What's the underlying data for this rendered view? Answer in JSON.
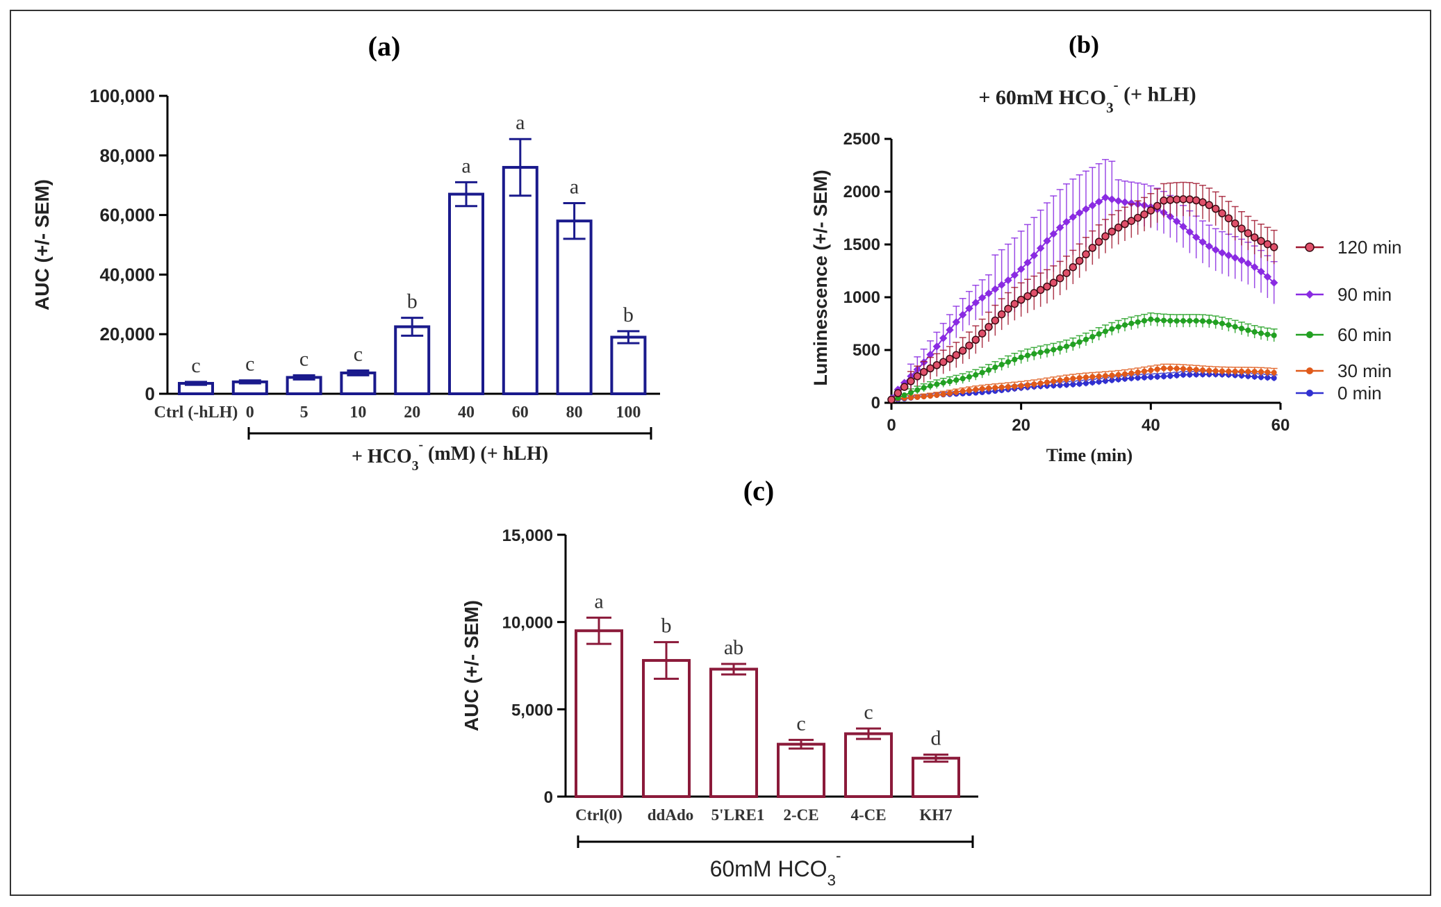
{
  "panels": {
    "a": {
      "label": "(a)"
    },
    "b": {
      "label": "(b)"
    },
    "c": {
      "label": "(c)"
    }
  },
  "chart_data": [
    {
      "id": "a",
      "type": "bar",
      "color": "#1a1a8c",
      "ylabel": "AUC (+/- SEM)",
      "ylim": [
        0,
        100000
      ],
      "yticks": [
        0,
        20000,
        40000,
        60000,
        80000,
        100000
      ],
      "ytick_labels": [
        "0",
        "20,000",
        "40,000",
        "60,000",
        "80,000",
        "100,000"
      ],
      "categories": [
        "Ctrl (-hLH)",
        "0",
        "5",
        "10",
        "20",
        "40",
        "60",
        "80",
        "100"
      ],
      "values": [
        3500,
        4000,
        5500,
        7000,
        22500,
        67000,
        76000,
        58000,
        19000
      ],
      "errors": [
        500,
        500,
        700,
        800,
        3000,
        4000,
        9500,
        6000,
        2000
      ],
      "letters": [
        "c",
        "c",
        "c",
        "c",
        "b",
        "a",
        "a",
        "a",
        "b"
      ],
      "group_label": {
        "main": "+ HCO",
        "sub": "3",
        "sup": "-",
        "rest": " (mM) (+ hLH)"
      }
    },
    {
      "id": "b",
      "type": "line",
      "title": {
        "main": "+ 60mM HCO",
        "sub": "3",
        "sup": "-",
        "rest": " (+ hLH)"
      },
      "xlabel": "Time (min)",
      "ylabel": "Luminescence (+/- SEM)",
      "xlim": [
        0,
        60
      ],
      "ylim": [
        0,
        2500
      ],
      "xticks": [
        0,
        20,
        40,
        60
      ],
      "yticks": [
        0,
        500,
        1000,
        1500,
        2000,
        2500
      ],
      "series": [
        {
          "name": "120 min",
          "color": "#a01830",
          "marker": "circle",
          "peak": 1950,
          "peak_t": 42,
          "end": 1480,
          "err": 160
        },
        {
          "name": "90 min",
          "color": "#8a2be2",
          "marker": "diamond",
          "peak": 1980,
          "peak_t": 33,
          "end": 1120,
          "err": 200
        },
        {
          "name": "60 min",
          "color": "#22a022",
          "marker": "circle",
          "peak": 800,
          "peak_t": 40,
          "end": 650,
          "err": 60
        },
        {
          "name": "30 min",
          "color": "#e05a1a",
          "marker": "circle",
          "peak": 320,
          "peak_t": 42,
          "end": 280,
          "err": 40
        },
        {
          "name": "0 min",
          "color": "#3030d0",
          "marker": "circle",
          "peak": 270,
          "peak_t": 45,
          "end": 240,
          "err": 30
        }
      ]
    },
    {
      "id": "c",
      "type": "bar",
      "color": "#8b1a3a",
      "ylabel": "AUC (+/- SEM)",
      "ylim": [
        0,
        15000
      ],
      "yticks": [
        0,
        5000,
        10000,
        15000
      ],
      "ytick_labels": [
        "0",
        "5,000",
        "10,000",
        "15,000"
      ],
      "categories": [
        "Ctrl(0)",
        "ddAdo",
        "5'LRE1",
        "2-CE",
        "4-CE",
        "KH7"
      ],
      "values": [
        9500,
        7800,
        7300,
        3000,
        3600,
        2200
      ],
      "errors": [
        750,
        1050,
        300,
        250,
        300,
        200
      ],
      "letters": [
        "a",
        "b",
        "ab",
        "c",
        "c",
        "d"
      ],
      "group_label": {
        "main": "60mM HCO",
        "sub": "3",
        "sup": "-",
        "rest": ""
      }
    }
  ]
}
